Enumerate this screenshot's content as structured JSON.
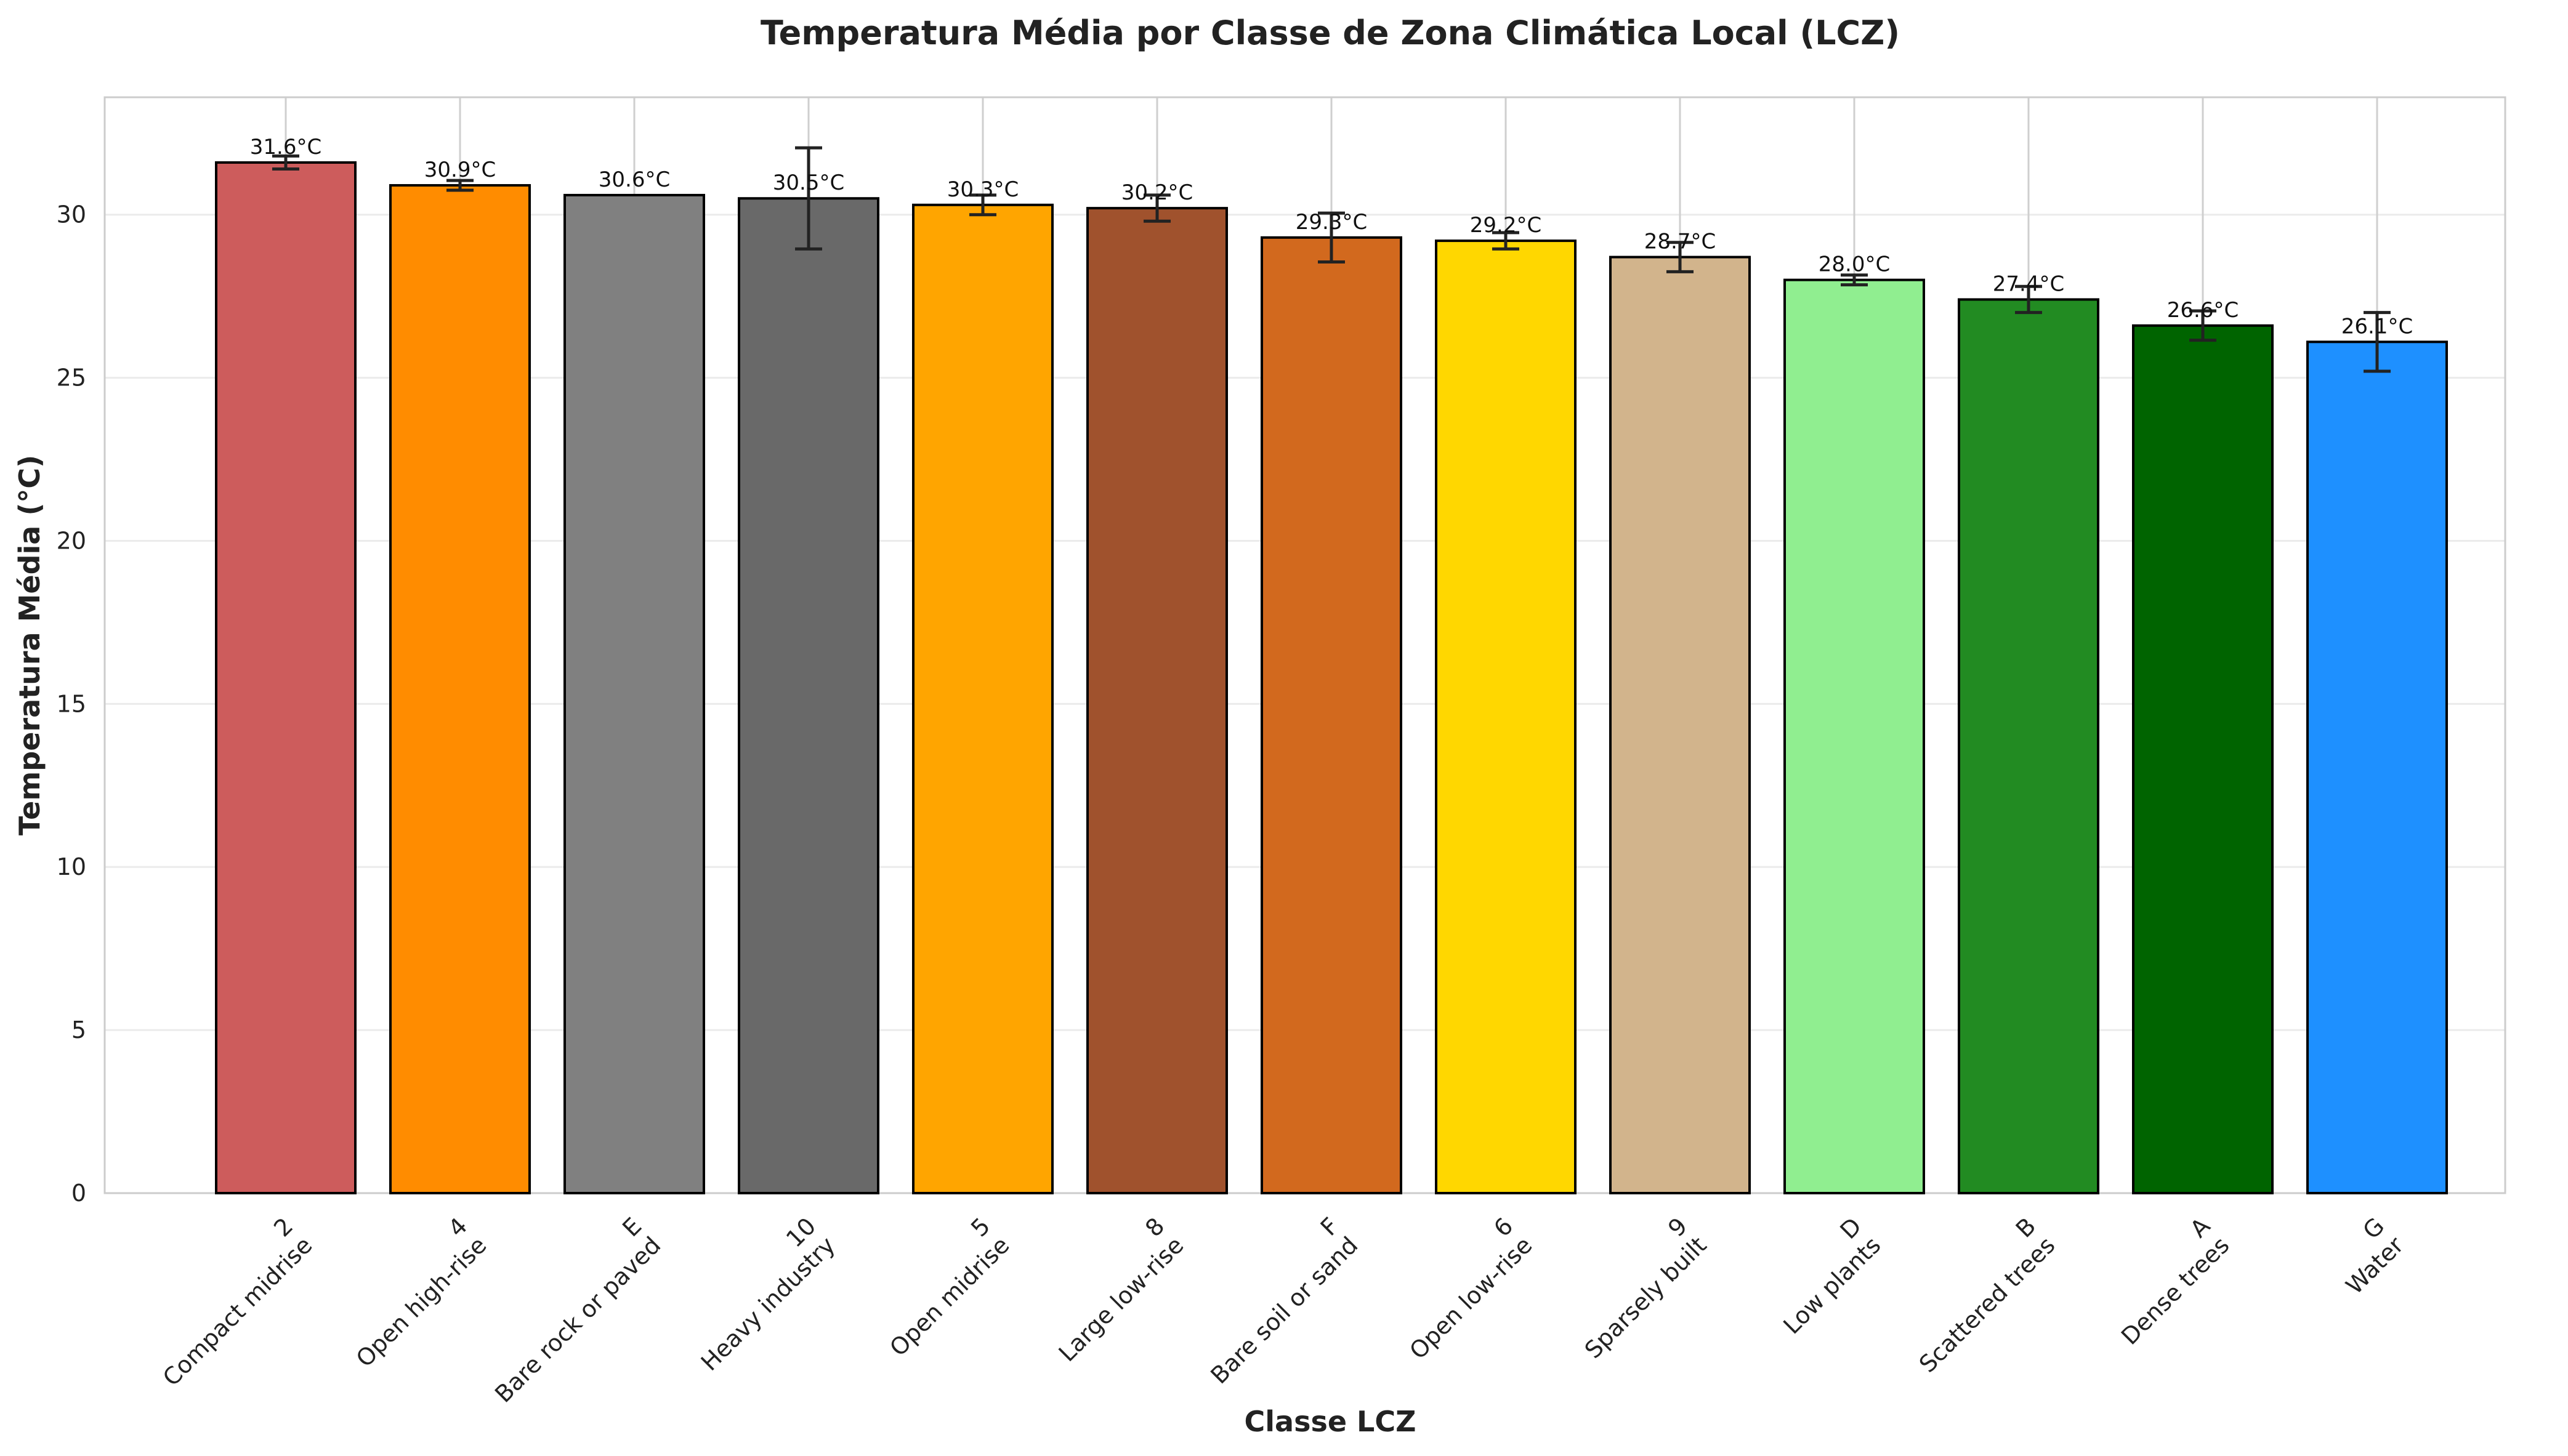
{
  "chart_data": {
    "type": "bar",
    "title": "Temperatura Média por Classe de Zona Climática Local (LCZ)",
    "xlabel": "Classe LCZ",
    "ylabel": "Temperatura Média (°C)",
    "ylim": [
      0,
      33.6
    ],
    "yticks": [
      0,
      5,
      10,
      15,
      20,
      25,
      30
    ],
    "grid": true,
    "categories": [
      {
        "code": "2",
        "name": "Compact midrise"
      },
      {
        "code": "4",
        "name": "Open high-rise"
      },
      {
        "code": "E",
        "name": "Bare rock or paved"
      },
      {
        "code": "10",
        "name": "Heavy industry"
      },
      {
        "code": "5",
        "name": "Open midrise"
      },
      {
        "code": "8",
        "name": "Large low-rise"
      },
      {
        "code": "F",
        "name": "Bare soil or sand"
      },
      {
        "code": "6",
        "name": "Open low-rise"
      },
      {
        "code": "9",
        "name": "Sparsely built"
      },
      {
        "code": "D",
        "name": "Low plants"
      },
      {
        "code": "B",
        "name": "Scattered trees"
      },
      {
        "code": "A",
        "name": "Dense trees"
      },
      {
        "code": "G",
        "name": "Water"
      }
    ],
    "values": [
      31.6,
      30.9,
      30.6,
      30.5,
      30.3,
      30.2,
      29.3,
      29.2,
      28.7,
      28.0,
      27.4,
      26.6,
      26.1
    ],
    "value_labels": [
      "31.6°C",
      "30.9°C",
      "30.6°C",
      "30.5°C",
      "30.3°C",
      "30.2°C",
      "29.3°C",
      "29.2°C",
      "28.7°C",
      "28.0°C",
      "27.4°C",
      "26.6°C",
      "26.1°C"
    ],
    "errors": [
      0.2,
      0.15,
      0.0,
      1.55,
      0.3,
      0.4,
      0.75,
      0.25,
      0.45,
      0.15,
      0.4,
      0.45,
      0.9
    ],
    "colors": [
      "#cd5c5c",
      "#ff8c00",
      "#808080",
      "#696969",
      "#ffa500",
      "#a0522d",
      "#d2691e",
      "#ffd700",
      "#d2b48c",
      "#90ee90",
      "#228b22",
      "#006400",
      "#1e90ff"
    ]
  }
}
